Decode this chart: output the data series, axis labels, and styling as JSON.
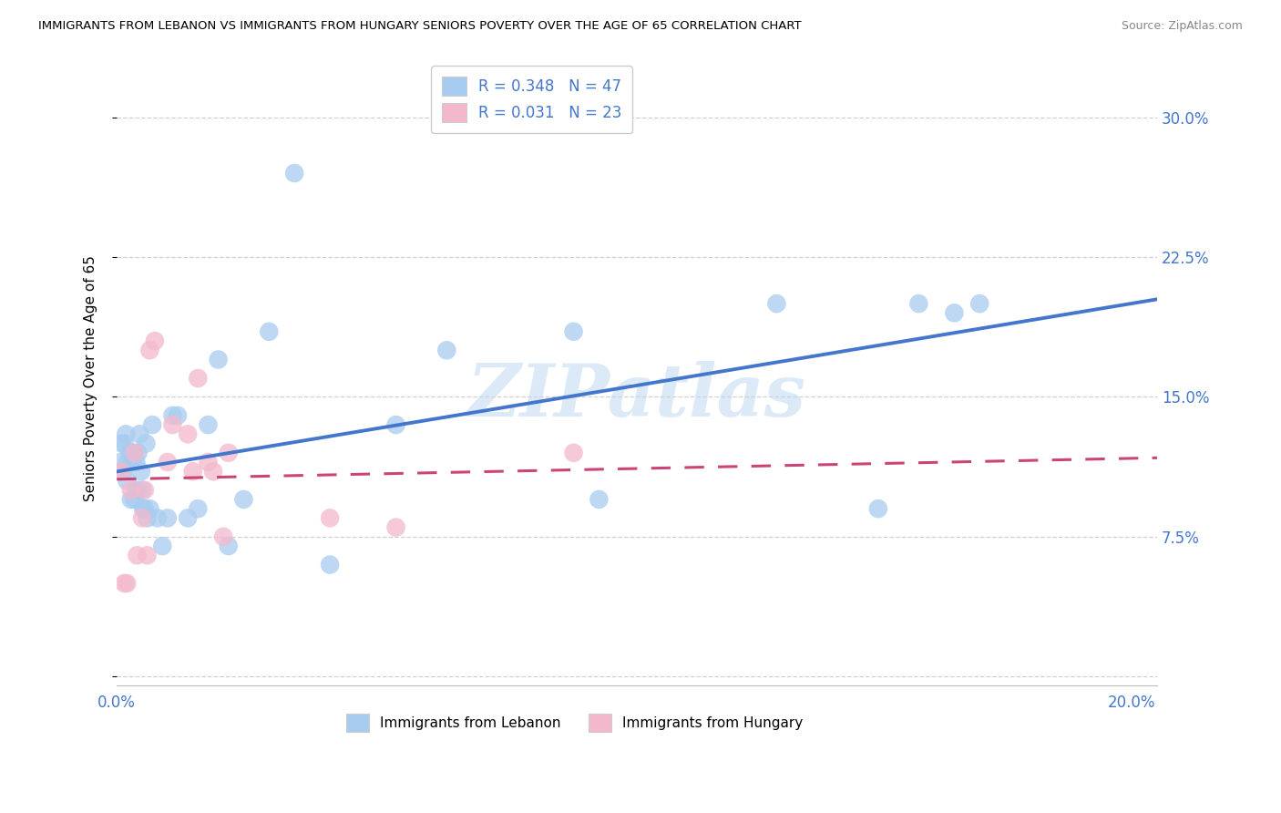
{
  "title": "IMMIGRANTS FROM LEBANON VS IMMIGRANTS FROM HUNGARY SENIORS POVERTY OVER THE AGE OF 65 CORRELATION CHART",
  "source": "Source: ZipAtlas.com",
  "ylabel": "Seniors Poverty Over the Age of 65",
  "ytick_vals": [
    0.0,
    0.075,
    0.15,
    0.225,
    0.3
  ],
  "ytick_labels": [
    "",
    "7.5%",
    "15.0%",
    "22.5%",
    "30.0%"
  ],
  "xtick_vals": [
    0.0,
    0.05,
    0.1,
    0.15,
    0.2
  ],
  "xtick_labels": [
    "0.0%",
    "",
    "",
    "",
    "20.0%"
  ],
  "xlim": [
    0.0,
    0.205
  ],
  "ylim": [
    -0.005,
    0.325
  ],
  "watermark_text": "ZIPatlas",
  "legend_r1": "R = 0.348",
  "legend_n1": "N = 47",
  "legend_r2": "R = 0.031",
  "legend_n2": "N = 23",
  "blue_scatter_color": "#A8CCF0",
  "pink_scatter_color": "#F4B8CC",
  "line_blue": "#4477CC",
  "line_pink": "#CC4477",
  "axis_color": "#4477CC",
  "background_color": "#FFFFFF",
  "grid_color": "#CCCCCC",
  "lebanon_x": [
    0.0008,
    0.001,
    0.0012,
    0.0015,
    0.0018,
    0.002,
    0.0022,
    0.0025,
    0.0028,
    0.003,
    0.0032,
    0.0035,
    0.0038,
    0.004,
    0.0042,
    0.0045,
    0.0048,
    0.005,
    0.0052,
    0.0055,
    0.0058,
    0.006,
    0.0065,
    0.007,
    0.008,
    0.009,
    0.01,
    0.011,
    0.012,
    0.014,
    0.016,
    0.018,
    0.02,
    0.022,
    0.025,
    0.03,
    0.035,
    0.042,
    0.055,
    0.065,
    0.09,
    0.095,
    0.13,
    0.15,
    0.158,
    0.165,
    0.17
  ],
  "lebanon_y": [
    0.115,
    0.125,
    0.11,
    0.125,
    0.13,
    0.105,
    0.115,
    0.12,
    0.095,
    0.115,
    0.12,
    0.095,
    0.115,
    0.1,
    0.12,
    0.13,
    0.11,
    0.1,
    0.09,
    0.09,
    0.125,
    0.085,
    0.09,
    0.135,
    0.085,
    0.07,
    0.085,
    0.14,
    0.14,
    0.085,
    0.09,
    0.135,
    0.17,
    0.07,
    0.095,
    0.185,
    0.27,
    0.06,
    0.135,
    0.175,
    0.185,
    0.095,
    0.2,
    0.09,
    0.2,
    0.195,
    0.2
  ],
  "hungary_x": [
    0.0008,
    0.0015,
    0.002,
    0.0028,
    0.0035,
    0.004,
    0.005,
    0.0055,
    0.006,
    0.0065,
    0.0075,
    0.01,
    0.011,
    0.014,
    0.015,
    0.016,
    0.018,
    0.019,
    0.021,
    0.022,
    0.042,
    0.055,
    0.09
  ],
  "hungary_y": [
    0.11,
    0.05,
    0.05,
    0.1,
    0.12,
    0.065,
    0.085,
    0.1,
    0.065,
    0.175,
    0.18,
    0.115,
    0.135,
    0.13,
    0.11,
    0.16,
    0.115,
    0.11,
    0.075,
    0.12,
    0.085,
    0.08,
    0.12
  ]
}
